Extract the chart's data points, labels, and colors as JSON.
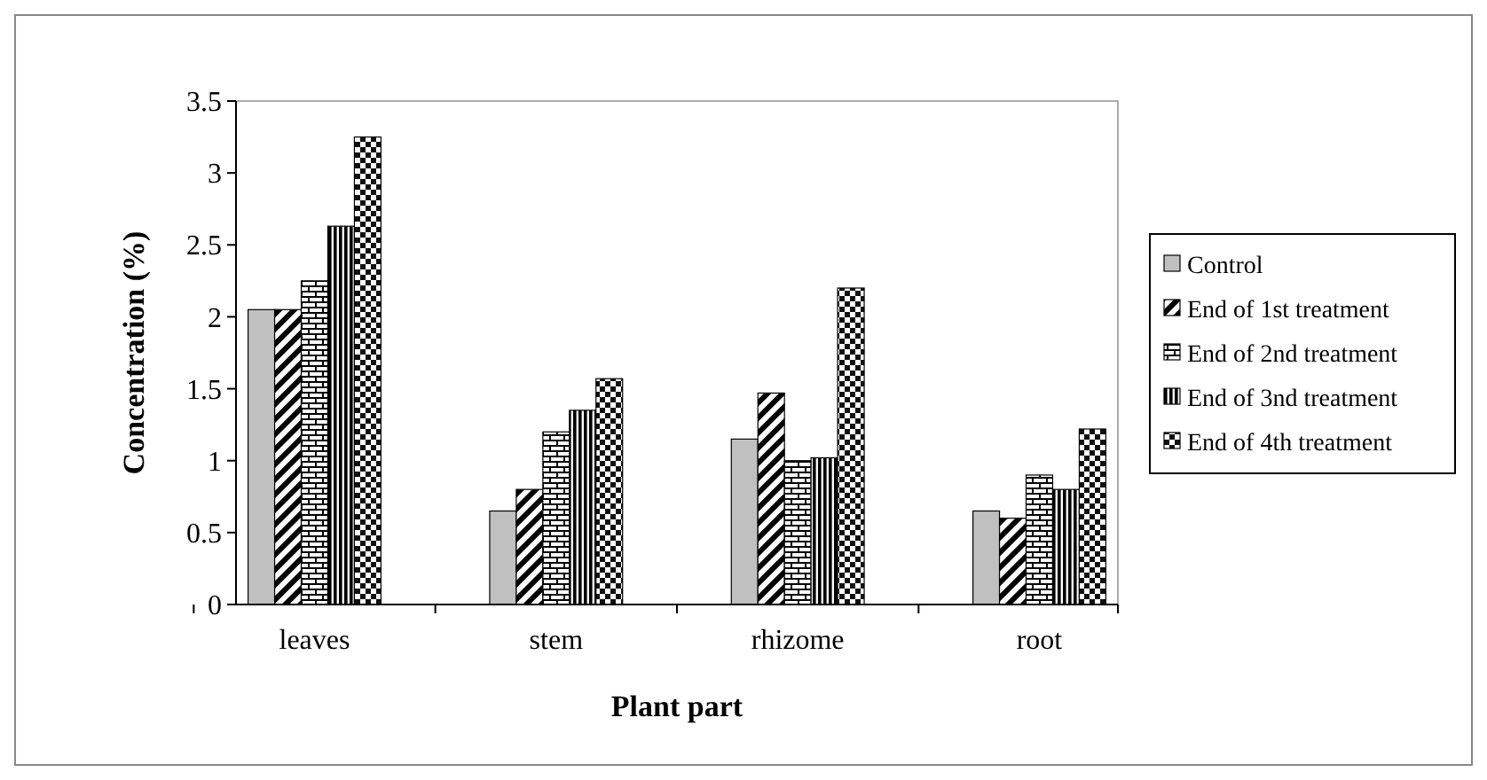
{
  "chart_data": {
    "type": "bar",
    "xlabel": "Plant part",
    "ylabel": "Concentration (%)",
    "categories": [
      "leaves",
      "stem",
      "rhizome",
      "root"
    ],
    "series": [
      {
        "name": "Control",
        "color": "#c0c0c0",
        "values": [
          2.05,
          0.65,
          1.15,
          0.65
        ]
      },
      {
        "name": "End of 1st treatment",
        "color": "#000000",
        "values": [
          2.05,
          0.8,
          1.47,
          0.6
        ]
      },
      {
        "name": "End of 2nd treatment",
        "color": "#000000",
        "values": [
          2.25,
          1.2,
          1.0,
          0.9
        ]
      },
      {
        "name": "End of 3nd treatment",
        "color": "#000000",
        "values": [
          2.63,
          1.35,
          1.02,
          0.8
        ]
      },
      {
        "name": "End of 4th treatment",
        "color": "#101010",
        "values": [
          3.25,
          1.57,
          2.2,
          1.22
        ]
      }
    ],
    "ylim": [
      0,
      3.5
    ],
    "yticks": [
      0,
      0.5,
      1,
      1.5,
      2,
      2.5,
      3,
      3.5
    ],
    "legend": "right",
    "grid": false
  }
}
